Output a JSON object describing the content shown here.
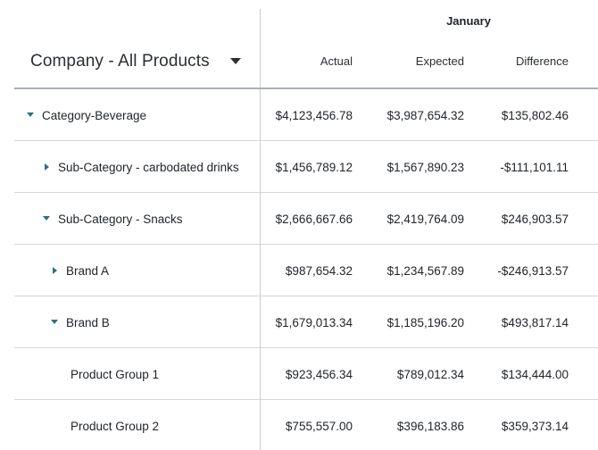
{
  "header": {
    "selector_label": "Company - All Products",
    "period": "January",
    "columns": {
      "actual": "Actual",
      "expected": "Expected",
      "difference": "Difference"
    }
  },
  "rows": [
    {
      "label": "Category-Beverage",
      "toggle": "expanded",
      "actual": "$4,123,456.78",
      "expected": "$3,987,654.32",
      "difference": "$135,802.46"
    },
    {
      "label": "Sub-Category - carbodated drinks",
      "toggle": "collapsed",
      "actual": "$1,456,789.12",
      "expected": "$1,567,890.23",
      "difference": "-$111,101.11"
    },
    {
      "label": "Sub-Category - Snacks",
      "toggle": "expanded",
      "actual": "$2,666,667.66",
      "expected": "$2,419,764.09",
      "difference": "$246,903.57"
    },
    {
      "label": "Brand A",
      "toggle": "collapsed",
      "actual": "$987,654.32",
      "expected": "$1,234,567.89",
      "difference": "-$246,913.57"
    },
    {
      "label": "Brand B",
      "toggle": "expanded",
      "actual": "$1,679,013.34",
      "expected": "$1,185,196.20",
      "difference": "$493,817.14"
    },
    {
      "label": "Product Group 1",
      "toggle": "none",
      "actual": "$923,456.34",
      "expected": "$789,012.34",
      "difference": "$134,444.00"
    },
    {
      "label": "Product Group 2",
      "toggle": "none",
      "actual": "$755,557.00",
      "expected": "$396,183.86",
      "difference": "$359,373.14"
    }
  ]
}
